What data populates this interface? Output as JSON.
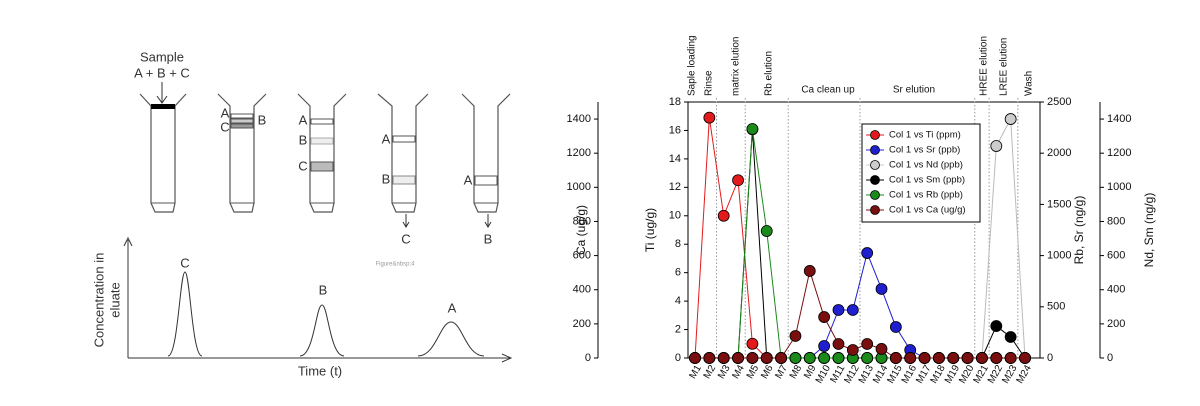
{
  "diagram": {
    "sample_label": "Sample",
    "mixture": "A + B + C",
    "column2_labels": [
      "A",
      "C",
      "B"
    ],
    "column3_labels": [
      "A",
      "B",
      "C"
    ],
    "column4_labels": [
      "A",
      "B"
    ],
    "column4_output": "C",
    "column5_labels": [
      "A"
    ],
    "column5_output": "B",
    "y_label_lines": [
      "Concentration in",
      "eluate"
    ],
    "x_label": "Time (t)",
    "peak_labels": [
      "C",
      "B",
      "A"
    ],
    "watermark": "Figure&nbsp;4"
  },
  "chart_data": {
    "type": "line",
    "categories": [
      "M1",
      "M2",
      "M3",
      "M4",
      "M5",
      "M6",
      "M7",
      "M8",
      "M9",
      "M10",
      "M11",
      "M12",
      "M13",
      "M14",
      "M15",
      "M16",
      "M17",
      "M18",
      "M19",
      "M20",
      "M21",
      "M22",
      "M23",
      "M24"
    ],
    "sections": [
      "Saple loading",
      "Rinse",
      "matrix elution",
      "Rb elution",
      "Ca clean up",
      "Sr elution",
      "HREE elution",
      "LREE elution",
      "Wash"
    ],
    "axes": [
      {
        "label": "Ca (ug/g)",
        "lim": [
          0,
          1500
        ],
        "ticks": [
          0,
          200,
          400,
          600,
          800,
          1000,
          1200,
          1400
        ]
      },
      {
        "label": "Ti (ug/g)",
        "lim": [
          0,
          18
        ],
        "ticks": [
          0,
          2,
          4,
          6,
          8,
          10,
          12,
          14,
          16,
          18
        ]
      },
      {
        "label": "Rb, Sr (ng/g)",
        "lim": [
          0,
          2500
        ],
        "ticks": [
          0,
          500,
          1000,
          1500,
          2000,
          2500
        ]
      },
      {
        "label": "Nd, Sm (ng/g)",
        "lim": [
          0,
          1500
        ],
        "ticks": [
          0,
          200,
          400,
          600,
          800,
          1000,
          1200,
          1400
        ]
      }
    ],
    "legend": "upper right",
    "series": [
      {
        "name": "Col 1 vs Ti (ppm)",
        "color": "#e31a1c",
        "axis": 1,
        "values": [
          0,
          16.9,
          10,
          12.5,
          1.0,
          0,
          0,
          0,
          0,
          0,
          0,
          0,
          0,
          0,
          0,
          0,
          0,
          0,
          0,
          0,
          0,
          0,
          0,
          0
        ]
      },
      {
        "name": "Col 1 vs Sr (ppb)",
        "color": "#1f1fd0",
        "axis": 2,
        "values": [
          0,
          0,
          0,
          0,
          0,
          0,
          0,
          0,
          0,
          117,
          469,
          469,
          1025,
          674,
          303,
          78,
          0,
          0,
          0,
          0,
          0,
          0,
          0,
          0
        ]
      },
      {
        "name": "Col 1 vs Nd (ppb)",
        "color": "#cccccc",
        "axis": 3,
        "values": [
          0,
          0,
          0,
          0,
          0,
          0,
          0,
          0,
          0,
          0,
          0,
          0,
          0,
          0,
          0,
          0,
          0,
          0,
          0,
          0,
          0,
          1242,
          1400,
          0
        ]
      },
      {
        "name": "Col 1 vs Sm (ppb)",
        "color": "#000000",
        "axis": 3,
        "values": [
          0,
          0,
          0,
          0,
          1340,
          0,
          0,
          0,
          0,
          0,
          0,
          0,
          0,
          0,
          0,
          0,
          0,
          0,
          0,
          0,
          0,
          187,
          123,
          0
        ]
      },
      {
        "name": "Col 1 vs Rb (ppb)",
        "color": "#1a8a1a",
        "axis": 2,
        "values": [
          0,
          0,
          0,
          0,
          2236,
          1240,
          0,
          0,
          0,
          0,
          0,
          0,
          0,
          0,
          0,
          0,
          0,
          0,
          0,
          0,
          0,
          0,
          0,
          0
        ]
      },
      {
        "name": "Col 1 vs Ca (ug/g)",
        "color": "#7a0f0f",
        "axis": 0,
        "values": [
          0,
          0,
          0,
          0,
          0,
          0,
          0,
          129,
          510,
          240,
          82,
          47,
          82,
          53,
          0,
          0,
          0,
          0,
          0,
          0,
          0,
          0,
          0,
          0
        ]
      }
    ]
  }
}
